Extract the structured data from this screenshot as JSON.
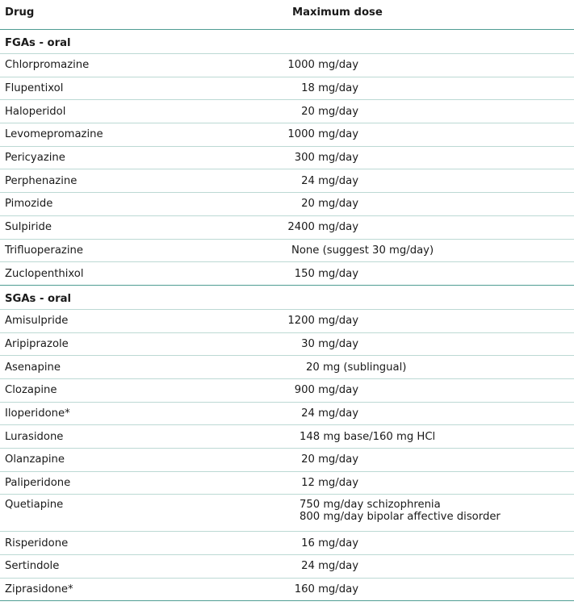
{
  "header": {
    "drug": "Drug",
    "dose": "Maximum dose"
  },
  "sections": [
    {
      "title": "FGAs - oral",
      "rows": [
        {
          "drug": "Chlorpromazine",
          "dose": [
            "1000 mg/day"
          ]
        },
        {
          "drug": "Flupentixol",
          "dose": [
            "18 mg/day"
          ]
        },
        {
          "drug": "Haloperidol",
          "dose": [
            "20 mg/day"
          ]
        },
        {
          "drug": "Levomepromazine",
          "dose": [
            "1000 mg/day"
          ]
        },
        {
          "drug": "Pericyazine",
          "dose": [
            "300 mg/day"
          ]
        },
        {
          "drug": "Perphenazine",
          "dose": [
            "24 mg/day"
          ]
        },
        {
          "drug": "Pimozide",
          "dose": [
            "20 mg/day"
          ]
        },
        {
          "drug": "Sulpiride",
          "dose": [
            "2400 mg/day"
          ]
        },
        {
          "drug": "Trifluoperazine",
          "dose": [
            "None (suggest 30 mg/day)"
          ]
        },
        {
          "drug": "Zuclopenthixol",
          "dose": [
            "150 mg/day"
          ]
        }
      ]
    },
    {
      "title": "SGAs - oral",
      "rows": [
        {
          "drug": "Amisulpride",
          "dose": [
            "1200 mg/day"
          ]
        },
        {
          "drug": "Aripiprazole",
          "dose": [
            "30 mg/day"
          ]
        },
        {
          "drug": "Asenapine",
          "dose": [
            "20 mg (sublingual)"
          ]
        },
        {
          "drug": "Clozapine",
          "dose": [
            "900 mg/day"
          ]
        },
        {
          "drug": "Iloperidone*",
          "dose": [
            "24 mg/day"
          ]
        },
        {
          "drug": "Lurasidone",
          "dose": [
            "148 mg base/160 mg HCl"
          ]
        },
        {
          "drug": "Olanzapine",
          "dose": [
            "20 mg/day"
          ]
        },
        {
          "drug": "Paliperidone",
          "dose": [
            "12 mg/day"
          ]
        },
        {
          "drug": "Quetiapine",
          "dose": [
            "750 mg/day schizophrenia",
            "800 mg/day bipolar affective disorder"
          ]
        },
        {
          "drug": "Risperidone",
          "dose": [
            "16 mg/day"
          ]
        },
        {
          "drug": "Sertindole",
          "dose": [
            "24 mg/day"
          ]
        },
        {
          "drug": "Ziprasidone*",
          "dose": [
            "160 mg/day"
          ]
        }
      ]
    }
  ]
}
